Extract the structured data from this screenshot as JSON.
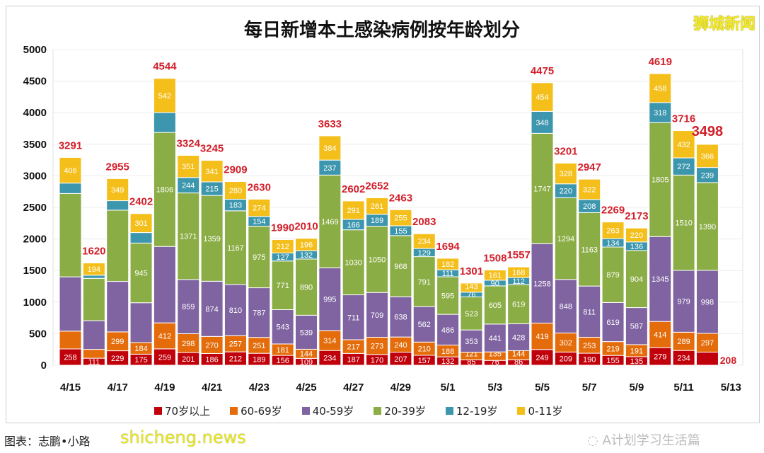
{
  "chart_data": {
    "type": "bar",
    "stacked": true,
    "title": "每日新增本土感染病例按年龄划分",
    "categories": [
      "4/15",
      "4/16",
      "4/17",
      "4/18",
      "4/19",
      "4/20",
      "4/21",
      "4/22",
      "4/23",
      "4/24",
      "4/25",
      "4/26",
      "4/27",
      "4/28",
      "4/29",
      "4/30",
      "5/1",
      "5/2",
      "5/3",
      "5/4",
      "5/5",
      "5/6",
      "5/7",
      "5/8",
      "5/9",
      "5/10",
      "5/11",
      "5/12",
      "5/13"
    ],
    "x_tick_labels": [
      "4/15",
      "4/17",
      "4/19",
      "4/21",
      "4/23",
      "4/25",
      "4/27",
      "4/29",
      "5/1",
      "5/3",
      "5/5",
      "5/7",
      "5/9",
      "5/11",
      "5/13"
    ],
    "ylim": [
      0,
      5000
    ],
    "y_ticks": [
      0,
      500,
      1000,
      1500,
      2000,
      2500,
      3000,
      3500,
      4000,
      4500,
      5000
    ],
    "grid": true,
    "legend_position": "bottom",
    "totals": [
      3291,
      1620,
      2955,
      2402,
      4544,
      3324,
      3245,
      2909,
      2630,
      1990,
      2010,
      3633,
      2602,
      2652,
      2463,
      2083,
      1694,
      1301,
      1508,
      1557,
      4475,
      3201,
      2947,
      2269,
      2173,
      4619,
      3716,
      3498,
      null
    ],
    "series": [
      {
        "name": "70岁以上",
        "color": "#c0000b",
        "values": [
          258,
          111,
          229,
          175,
          259,
          201,
          186,
          212,
          189,
          156,
          109,
          234,
          187,
          170,
          207,
          157,
          132,
          85,
          76,
          86,
          249,
          209,
          190,
          155,
          135,
          279,
          234,
          208,
          null
        ]
      },
      {
        "name": "60-69岁",
        "color": "#e46c0a",
        "values": [
          282,
          140,
          299,
          184,
          412,
          298,
          270,
          257,
          251,
          181,
          144,
          314,
          217,
          273,
          240,
          210,
          188,
          121,
          135,
          144,
          419,
          302,
          253,
          219,
          191,
          414,
          289,
          297,
          null
        ]
      },
      {
        "name": "40-59岁",
        "color": "#8064a2",
        "values": [
          860,
          455,
          800,
          631,
          1210,
          859,
          874,
          810,
          787,
          543,
          539,
          995,
          711,
          709,
          638,
          562,
          486,
          353,
          441,
          428,
          1258,
          848,
          811,
          619,
          587,
          1345,
          979,
          998,
          null
        ]
      },
      {
        "name": "20-39岁",
        "color": "#8bad45",
        "values": [
          1320,
          670,
          1128,
          945,
          1806,
          1371,
          1359,
          1167,
          975,
          771,
          890,
          1469,
          1030,
          1050,
          968,
          791,
          595,
          523,
          605,
          619,
          1747,
          1294,
          1163,
          879,
          904,
          1805,
          1510,
          1390,
          null
        ]
      },
      {
        "name": "12-19岁",
        "color": "#3c96ad",
        "values": [
          165,
          50,
          150,
          166,
          315,
          244,
          215,
          183,
          154,
          127,
          132,
          237,
          166,
          189,
          155,
          129,
          111,
          76,
          90,
          112,
          348,
          220,
          208,
          134,
          136,
          318,
          272,
          239,
          null
        ]
      },
      {
        "name": "0-11岁",
        "color": "#f5bf1b",
        "values": [
          406,
          194,
          349,
          301,
          542,
          351,
          341,
          280,
          274,
          212,
          196,
          384,
          291,
          261,
          255,
          234,
          182,
          143,
          161,
          168,
          454,
          328,
          322,
          263,
          220,
          458,
          432,
          366,
          null
        ]
      }
    ],
    "unlabeled_segments": {
      "4/15": [
        "60-69岁",
        "40-59岁",
        "20-39岁",
        "12-19岁"
      ],
      "4/16": [
        "60-69岁",
        "40-59岁",
        "20-39岁",
        "12-19岁"
      ],
      "4/17": [
        "40-59岁",
        "20-39岁",
        "12-19岁"
      ],
      "4/18": [
        "40-59岁",
        "12-19岁"
      ],
      "4/19": [
        "40-59岁",
        "12-19岁"
      ]
    },
    "latest_total_highlight": "3498"
  },
  "brand": "狮城新闻",
  "wechat_source": "A计划学习生活篇",
  "credit": "图表：志鹏•小路",
  "watermark": "shicheng.news"
}
